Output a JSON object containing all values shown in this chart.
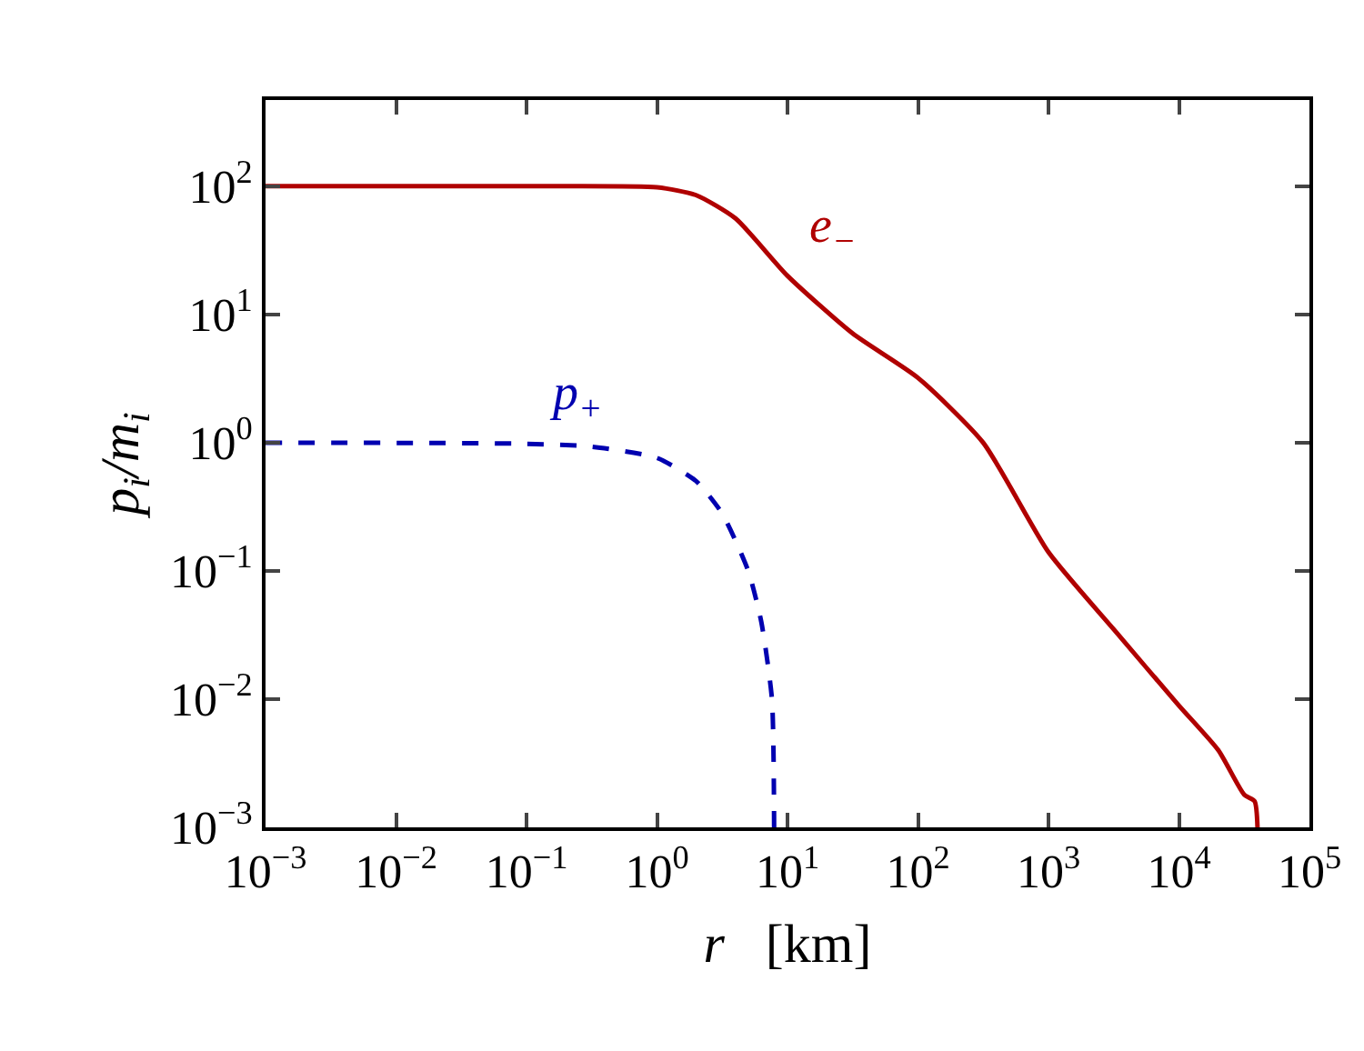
{
  "chart_data": {
    "type": "line",
    "xlabel": "r   [km]",
    "ylabel": "p$_{i}$/m$_{i}$",
    "log": "xy",
    "marker": "none",
    "xlim": [
      0.001,
      100000
    ],
    "ylim": [
      0.001,
      470
    ],
    "xticks": [
      {
        "value": 0.001,
        "label": "10$^{−3}$"
      },
      {
        "value": 0.01,
        "label": "10$^{−2}$"
      },
      {
        "value": 0.1,
        "label": "10$^{−1}$"
      },
      {
        "value": 1,
        "label": "10$^{0}$"
      },
      {
        "value": 10,
        "label": "10$^{1}$"
      },
      {
        "value": 100,
        "label": "10$^{2}$"
      },
      {
        "value": 1000,
        "label": "10$^{3}$"
      },
      {
        "value": 10000,
        "label": "10$^{4}$"
      },
      {
        "value": 100000,
        "label": "10$^{5}$"
      }
    ],
    "yticks": [
      {
        "value": 0.001,
        "label": "10$^{−3}$"
      },
      {
        "value": 0.01,
        "label": "10$^{−2}$"
      },
      {
        "value": 0.1,
        "label": "10$^{−1}$"
      },
      {
        "value": 1,
        "label": "10$^{0}$"
      },
      {
        "value": 10,
        "label": "10$^{1}$"
      },
      {
        "value": 100,
        "label": "10$^{2}$"
      }
    ],
    "series": [
      {
        "name": "e$_{−}$",
        "color": "#b00000",
        "line_style": "solid",
        "x": [
          0.001,
          0.1,
          1,
          2,
          4,
          10,
          31.6,
          100,
          316,
          1000,
          3162,
          10000,
          20000,
          31600,
          38000,
          40000
        ],
        "values": [
          100,
          100,
          98,
          85,
          56,
          20,
          7.1,
          3.2,
          1.0,
          0.14,
          0.035,
          0.0089,
          0.004,
          0.0018,
          0.0016,
          0.001
        ]
      },
      {
        "name": "p$_{+}$",
        "color": "#0000b0",
        "line_style": "dashed",
        "x": [
          0.001,
          0.1,
          0.316,
          1,
          2,
          3.16,
          5,
          6.3,
          7.6,
          7.9
        ],
        "values": [
          1,
          0.98,
          0.93,
          0.76,
          0.5,
          0.28,
          0.1,
          0.04,
          0.01,
          0.001
        ]
      }
    ]
  }
}
